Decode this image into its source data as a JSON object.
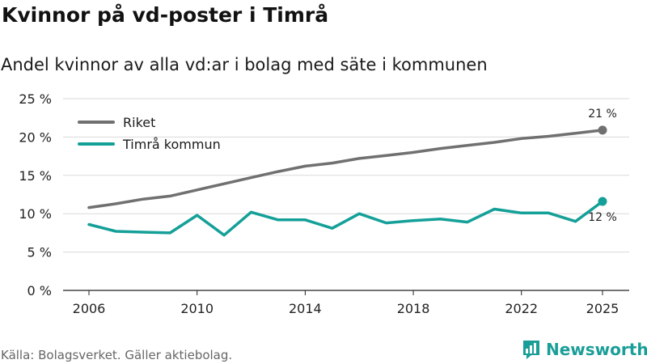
{
  "header": {
    "title": "Kvinnor på vd-poster i Timrå",
    "subtitle": "Andel kvinnor av alla vd:ar i bolag med säte i kommunen"
  },
  "footer": {
    "source": "Källa: Bolagsverket. Gäller aktiebolag.",
    "brand": "Newsworthy"
  },
  "colors": {
    "riket": "#707070",
    "timra": "#14a098",
    "grid": "#d9d9d9",
    "brand": "#1a9e98"
  },
  "chart_data": {
    "type": "line",
    "title": "Kvinnor på vd-poster i Timrå",
    "subtitle": "Andel kvinnor av alla vd:ar i bolag med säte i kommunen",
    "xlabel": "",
    "ylabel": "",
    "x": [
      2006,
      2007,
      2008,
      2009,
      2010,
      2011,
      2012,
      2013,
      2014,
      2015,
      2016,
      2017,
      2018,
      2019,
      2020,
      2021,
      2022,
      2023,
      2024,
      2025
    ],
    "x_ticks": [
      "2006",
      "2010",
      "2014",
      "2018",
      "2022",
      "2025"
    ],
    "y_ticks": [
      "0 %",
      "5 %",
      "10 %",
      "15 %",
      "20 %",
      "25 %"
    ],
    "ylim": [
      0,
      25
    ],
    "grid": true,
    "legend_position": "top-left",
    "series": [
      {
        "name": "Riket",
        "values": [
          10.8,
          11.3,
          11.9,
          12.3,
          13.1,
          13.9,
          14.7,
          15.5,
          16.2,
          16.6,
          17.2,
          17.6,
          18.0,
          18.5,
          18.9,
          19.3,
          19.8,
          20.1,
          20.5,
          20.9
        ],
        "end_label": "21 %"
      },
      {
        "name": "Timrå kommun",
        "values": [
          8.6,
          7.7,
          7.6,
          7.5,
          9.8,
          7.2,
          10.2,
          9.2,
          9.2,
          8.1,
          10.0,
          8.8,
          9.1,
          9.3,
          8.9,
          10.6,
          10.1,
          10.1,
          9.0,
          11.6
        ],
        "end_label": "12 %"
      }
    ]
  }
}
